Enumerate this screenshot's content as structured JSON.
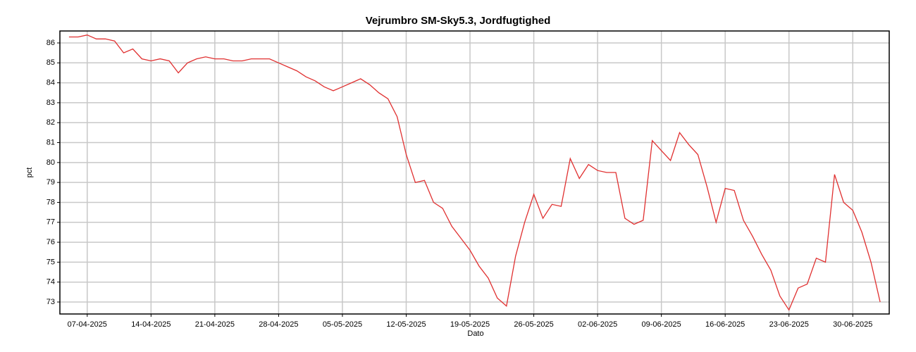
{
  "chart_data": {
    "type": "line",
    "title": "Vejrumbro SM-Sky5.3, Jordfugtighed",
    "x_label": "Dato",
    "y_label": "pct",
    "grid": true,
    "x": [
      "2025-04-05",
      "2025-04-06",
      "2025-04-07",
      "2025-04-08",
      "2025-04-09",
      "2025-04-10",
      "2025-04-11",
      "2025-04-12",
      "2025-04-13",
      "2025-04-14",
      "2025-04-15",
      "2025-04-16",
      "2025-04-17",
      "2025-04-18",
      "2025-04-19",
      "2025-04-20",
      "2025-04-21",
      "2025-04-22",
      "2025-04-23",
      "2025-04-24",
      "2025-04-25",
      "2025-04-26",
      "2025-04-27",
      "2025-04-28",
      "2025-04-29",
      "2025-04-30",
      "2025-05-01",
      "2025-05-02",
      "2025-05-03",
      "2025-05-04",
      "2025-05-05",
      "2025-05-06",
      "2025-05-07",
      "2025-05-08",
      "2025-05-09",
      "2025-05-10",
      "2025-05-11",
      "2025-05-12",
      "2025-05-13",
      "2025-05-14",
      "2025-05-15",
      "2025-05-16",
      "2025-05-17",
      "2025-05-18",
      "2025-05-19",
      "2025-05-20",
      "2025-05-21",
      "2025-05-22",
      "2025-05-23",
      "2025-05-24",
      "2025-05-25",
      "2025-05-26",
      "2025-05-27",
      "2025-05-28",
      "2025-05-29",
      "2025-05-30",
      "2025-05-31",
      "2025-06-01",
      "2025-06-02",
      "2025-06-03",
      "2025-06-04",
      "2025-06-05",
      "2025-06-06",
      "2025-06-07",
      "2025-06-08",
      "2025-06-09",
      "2025-06-10",
      "2025-06-11",
      "2025-06-12",
      "2025-06-13",
      "2025-06-14",
      "2025-06-15",
      "2025-06-16",
      "2025-06-17",
      "2025-06-18",
      "2025-06-19",
      "2025-06-20",
      "2025-06-21",
      "2025-06-22",
      "2025-06-23",
      "2025-06-24",
      "2025-06-25",
      "2025-06-26",
      "2025-06-27",
      "2025-06-28",
      "2025-06-29",
      "2025-06-30",
      "2025-07-01",
      "2025-07-02",
      "2025-07-03"
    ],
    "series": [
      {
        "name": "Jordfugtighed",
        "color": "#e03030",
        "values": [
          86.3,
          86.3,
          86.4,
          86.2,
          86.2,
          86.1,
          85.5,
          85.7,
          85.2,
          85.1,
          85.2,
          85.1,
          84.5,
          85.0,
          85.2,
          85.3,
          85.2,
          85.2,
          85.1,
          85.1,
          85.2,
          85.2,
          85.2,
          85.0,
          84.8,
          84.6,
          84.3,
          84.1,
          83.8,
          83.6,
          83.8,
          84.0,
          84.2,
          83.9,
          83.5,
          83.2,
          82.3,
          80.4,
          79.0,
          79.1,
          78.0,
          77.7,
          76.8,
          76.2,
          75.6,
          74.8,
          74.2,
          73.2,
          72.8,
          75.3,
          77.0,
          78.4,
          77.2,
          77.9,
          77.8,
          80.2,
          79.2,
          79.9,
          79.6,
          79.5,
          79.5,
          77.2,
          76.9,
          77.1,
          81.1,
          80.6,
          80.1,
          81.5,
          80.9,
          80.4,
          78.8,
          77.0,
          78.7,
          78.6,
          77.1,
          76.3,
          75.4,
          74.6,
          73.3,
          72.6,
          73.7,
          73.9,
          75.2,
          75.0,
          79.4,
          78.0,
          77.6,
          76.5,
          75.0,
          73.0
        ]
      }
    ],
    "xlim": [
      "2025-04-04",
      "2025-07-04"
    ],
    "xticks": [
      {
        "value": "2025-04-07",
        "label": "07-04-2025"
      },
      {
        "value": "2025-04-14",
        "label": "14-04-2025"
      },
      {
        "value": "2025-04-21",
        "label": "21-04-2025"
      },
      {
        "value": "2025-04-28",
        "label": "28-04-2025"
      },
      {
        "value": "2025-05-05",
        "label": "05-05-2025"
      },
      {
        "value": "2025-05-12",
        "label": "12-05-2025"
      },
      {
        "value": "2025-05-19",
        "label": "19-05-2025"
      },
      {
        "value": "2025-05-26",
        "label": "26-05-2025"
      },
      {
        "value": "2025-06-02",
        "label": "02-06-2025"
      },
      {
        "value": "2025-06-09",
        "label": "09-06-2025"
      },
      {
        "value": "2025-06-16",
        "label": "16-06-2025"
      },
      {
        "value": "2025-06-23",
        "label": "23-06-2025"
      },
      {
        "value": "2025-06-30",
        "label": "30-06-2025"
      }
    ],
    "ylim": [
      72.4,
      86.6
    ],
    "yticks": [
      73,
      74,
      75,
      76,
      77,
      78,
      79,
      80,
      81,
      82,
      83,
      84,
      85,
      86
    ]
  }
}
